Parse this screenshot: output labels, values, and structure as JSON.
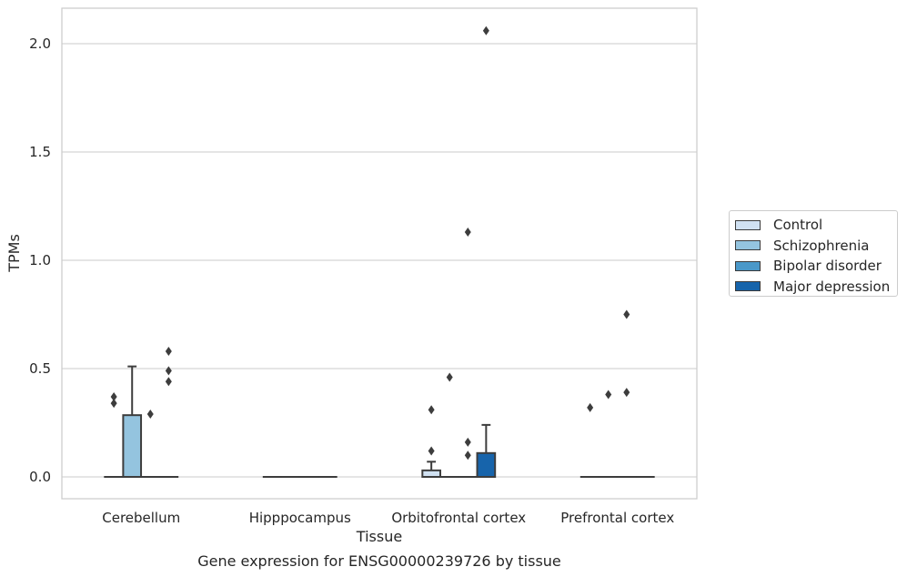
{
  "chart_data": {
    "type": "box",
    "caption": "Gene expression for ENSG00000239726 by tissue",
    "xlabel": "Tissue",
    "ylabel": "TPMs",
    "ylim": [
      -0.1,
      2.17
    ],
    "yticks": [
      "0.0",
      "0.5",
      "1.0",
      "1.5",
      "2.0"
    ],
    "grid": true,
    "legend_position": "right",
    "categories": [
      "Cerebellum",
      "Hipppocampus",
      "Orbitofrontal cortex",
      "Prefrontal cortex"
    ],
    "series": [
      {
        "name": "Control",
        "color": "#d0e1f2",
        "boxes": [
          {
            "q1": 0,
            "median": 0,
            "q3": 0,
            "whisker_low": 0,
            "whisker_high": 0,
            "outliers": [
              0.34,
              0.37
            ]
          },
          {
            "q1": 0,
            "median": 0,
            "q3": 0,
            "whisker_low": 0,
            "whisker_high": 0,
            "outliers": []
          },
          {
            "q1": 0,
            "median": 0,
            "q3": 0.03,
            "whisker_low": 0,
            "whisker_high": 0.07,
            "outliers": [
              0.12,
              0.31
            ]
          },
          {
            "q1": 0,
            "median": 0,
            "q3": 0,
            "whisker_low": 0,
            "whisker_high": 0,
            "outliers": [
              0.32
            ]
          }
        ]
      },
      {
        "name": "Schizophrenia",
        "color": "#94c4df",
        "boxes": [
          {
            "q1": 0,
            "median": 0,
            "q3": 0.285,
            "whisker_low": 0,
            "whisker_high": 0.51,
            "outliers": []
          },
          {
            "q1": 0,
            "median": 0,
            "q3": 0,
            "whisker_low": 0,
            "whisker_high": 0,
            "outliers": []
          },
          {
            "q1": 0,
            "median": 0,
            "q3": 0,
            "whisker_low": 0,
            "whisker_high": 0,
            "outliers": [
              0.46
            ]
          },
          {
            "q1": 0,
            "median": 0,
            "q3": 0,
            "whisker_low": 0,
            "whisker_high": 0,
            "outliers": [
              0.38
            ]
          }
        ]
      },
      {
        "name": "Bipolar disorder",
        "color": "#4a98c9",
        "boxes": [
          {
            "q1": 0,
            "median": 0,
            "q3": 0,
            "whisker_low": 0,
            "whisker_high": 0,
            "outliers": [
              0.29
            ]
          },
          {
            "q1": 0,
            "median": 0,
            "q3": 0,
            "whisker_low": 0,
            "whisker_high": 0,
            "outliers": []
          },
          {
            "q1": 0,
            "median": 0,
            "q3": 0,
            "whisker_low": 0,
            "whisker_high": 0,
            "outliers": [
              0.1,
              0.16,
              1.13
            ]
          },
          {
            "q1": 0,
            "median": 0,
            "q3": 0,
            "whisker_low": 0,
            "whisker_high": 0,
            "outliers": [
              0.39,
              0.75
            ]
          }
        ]
      },
      {
        "name": "Major depression",
        "color": "#1764ab",
        "boxes": [
          {
            "q1": 0,
            "median": 0,
            "q3": 0,
            "whisker_low": 0,
            "whisker_high": 0,
            "outliers": [
              0.44,
              0.49,
              0.58
            ]
          },
          {
            "q1": 0,
            "median": 0,
            "q3": 0,
            "whisker_low": 0,
            "whisker_high": 0,
            "outliers": []
          },
          {
            "q1": 0,
            "median": 0,
            "q3": 0.11,
            "whisker_low": 0,
            "whisker_high": 0.24,
            "outliers": [
              2.06
            ]
          },
          {
            "q1": 0,
            "median": 0,
            "q3": 0,
            "whisker_low": 0,
            "whisker_high": 0,
            "outliers": []
          }
        ]
      }
    ]
  }
}
